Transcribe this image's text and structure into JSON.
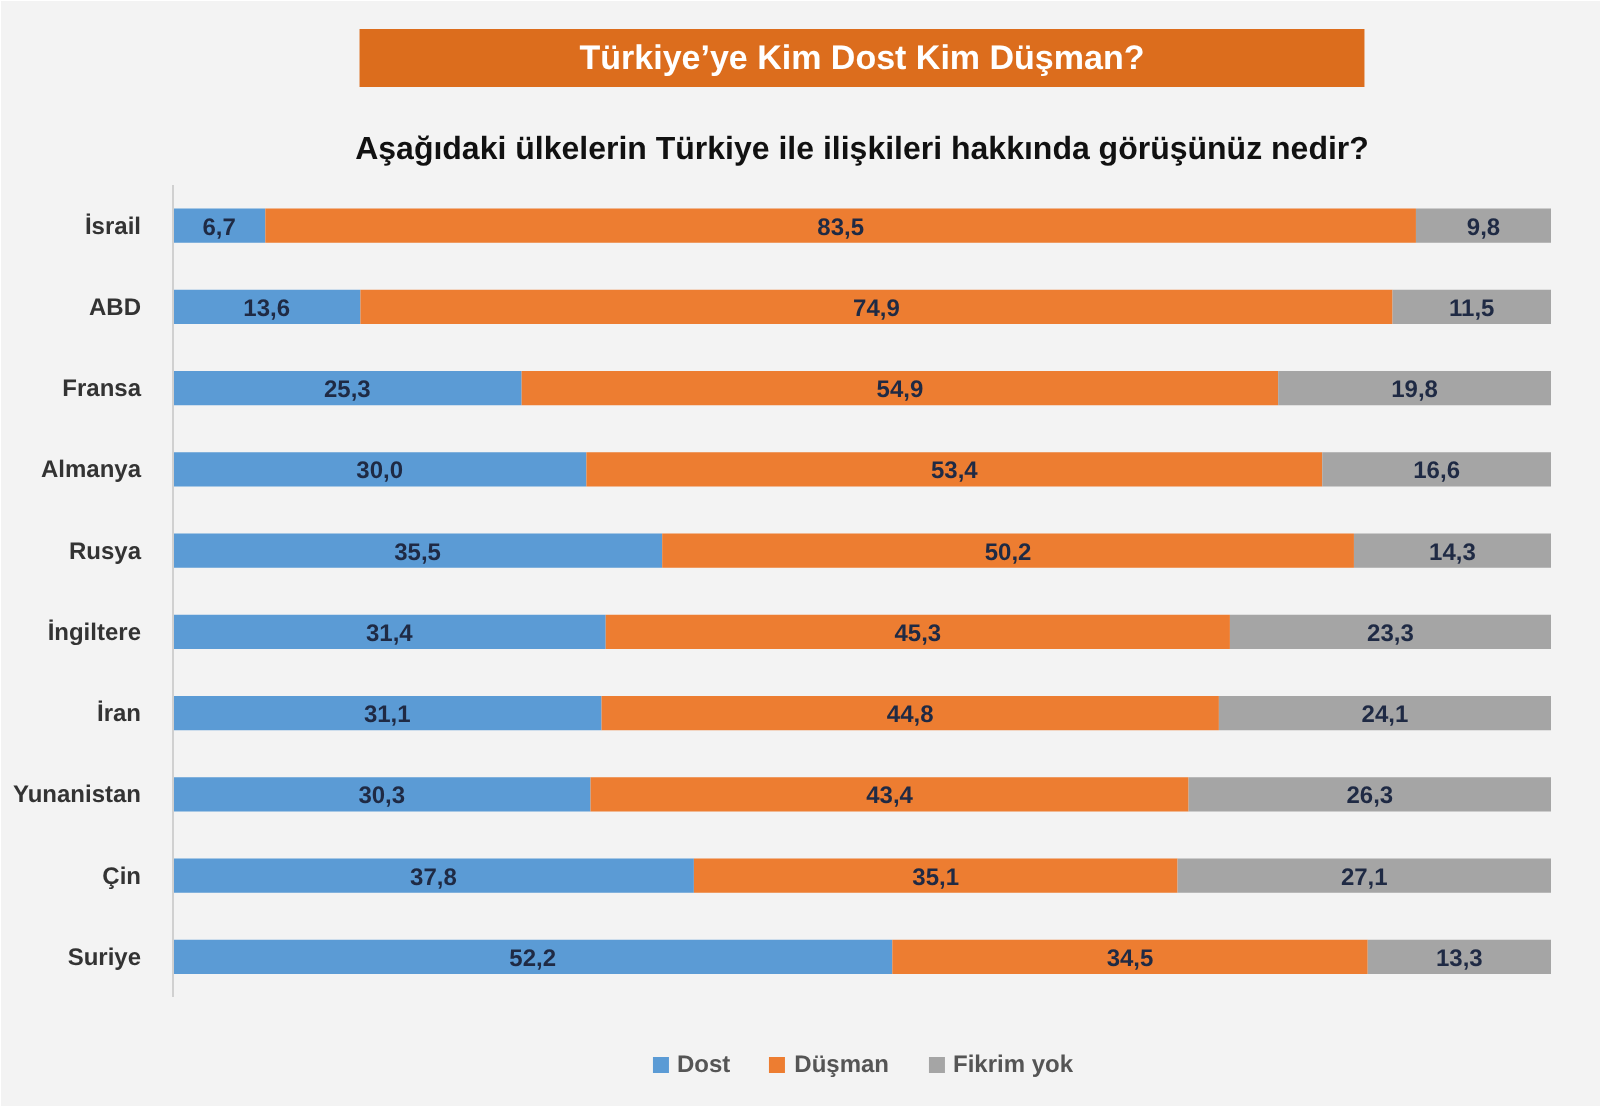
{
  "chart_data": {
    "type": "bar",
    "orientation": "horizontal",
    "stacked": true,
    "title": "Türkiye’ye Kim Dost Kim Düşman?",
    "subtitle": "Aşağıdaki ülkelerin Türkiye ile ilişkileri hakkında görüşünüz nedir?",
    "categories": [
      "İsrail",
      "ABD",
      "Fransa",
      "Almanya",
      "Rusya",
      "İngiltere",
      "İran",
      "Yunanistan",
      "Çin",
      "Suriye"
    ],
    "series": [
      {
        "name": "Dost",
        "color": "#5b9bd5",
        "values": [
          6.7,
          13.6,
          25.3,
          30.0,
          35.5,
          31.4,
          31.1,
          30.3,
          37.8,
          52.2
        ],
        "value_labels": [
          "6,7",
          "13,6",
          "25,3",
          "30,0",
          "35,5",
          "31,4",
          "31,1",
          "30,3",
          "37,8",
          "52,2"
        ]
      },
      {
        "name": "Düşman",
        "color": "#ed7d31",
        "values": [
          83.5,
          74.9,
          54.9,
          53.4,
          50.2,
          45.3,
          44.8,
          43.4,
          35.1,
          34.5
        ],
        "value_labels": [
          "83,5",
          "74,9",
          "54,9",
          "53,4",
          "50,2",
          "45,3",
          "44,8",
          "43,4",
          "35,1",
          "34,5"
        ]
      },
      {
        "name": "Fikrim yok",
        "color": "#a5a5a5",
        "values": [
          9.8,
          11.5,
          19.8,
          16.6,
          14.3,
          23.3,
          24.1,
          26.3,
          27.1,
          13.3
        ],
        "value_labels": [
          "9,8",
          "11,5",
          "19,8",
          "16,6",
          "14,3",
          "23,3",
          "24,1",
          "26,3",
          "27,1",
          "13,3"
        ]
      }
    ],
    "tick_labels": "y",
    "legend": "bottom"
  }
}
